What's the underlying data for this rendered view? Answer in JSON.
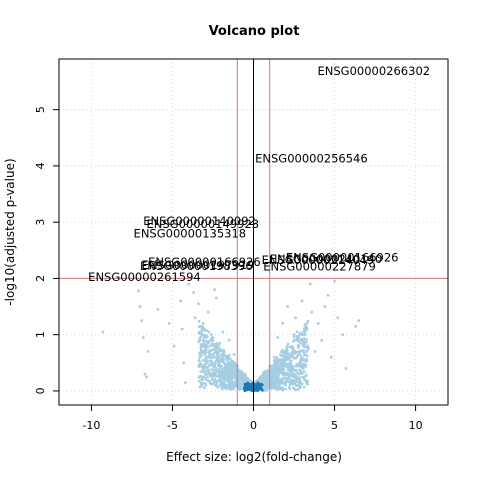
{
  "chart_data": {
    "type": "scatter",
    "title": "Volcano plot",
    "xlabel": "Effect size: log2(fold-change)",
    "ylabel": "-log10(adjusted p-value)",
    "xlim": [
      -12,
      12
    ],
    "ylim": [
      -0.25,
      5.9
    ],
    "xticks": [
      -10,
      -5,
      0,
      5,
      10
    ],
    "yticks": [
      0,
      1,
      2,
      3,
      4,
      5
    ],
    "grid": true,
    "thresholds": {
      "fc_lines": [
        -1,
        1
      ],
      "p_line": 2,
      "zero_line": 0
    },
    "colors": {
      "points": "#a6cee3",
      "points_dense": "#1f78b4",
      "threshold_lines": "#c97a7a",
      "zero_line": "#000000",
      "grid": "#d9d9d9"
    },
    "points": [
      {
        "x": -9.3,
        "y": 1.05
      },
      {
        "x": -7.1,
        "y": 1.78
      },
      {
        "x": -7.0,
        "y": 1.5
      },
      {
        "x": -6.9,
        "y": 1.25
      },
      {
        "x": -6.8,
        "y": 0.95
      },
      {
        "x": -6.7,
        "y": 0.3
      },
      {
        "x": -6.6,
        "y": 0.25
      },
      {
        "x": -6.5,
        "y": 0.7
      },
      {
        "x": -5.9,
        "y": 1.45
      },
      {
        "x": -5.2,
        "y": 1.2
      },
      {
        "x": -4.9,
        "y": 0.8
      },
      {
        "x": -4.5,
        "y": 1.6
      },
      {
        "x": -4.4,
        "y": 1.1
      },
      {
        "x": -4.3,
        "y": 0.5
      },
      {
        "x": -4.2,
        "y": 0.15
      },
      {
        "x": -4.0,
        "y": 1.9
      },
      {
        "x": -3.7,
        "y": 1.75
      },
      {
        "x": -3.6,
        "y": 1.3
      },
      {
        "x": -3.4,
        "y": 1.55
      },
      {
        "x": -3.3,
        "y": 0.9
      },
      {
        "x": -3.1,
        "y": 1.2
      },
      {
        "x": -2.9,
        "y": 0.6
      },
      {
        "x": -2.8,
        "y": 1.4
      },
      {
        "x": -2.6,
        "y": 1.0
      },
      {
        "x": -2.5,
        "y": 0.45
      },
      {
        "x": -2.4,
        "y": 1.8
      },
      {
        "x": -2.3,
        "y": 1.65
      },
      {
        "x": -2.1,
        "y": 0.75
      },
      {
        "x": -1.9,
        "y": 1.05
      },
      {
        "x": -1.8,
        "y": 0.35
      },
      {
        "x": -1.6,
        "y": 0.55
      },
      {
        "x": -1.5,
        "y": 0.9
      },
      {
        "x": -1.3,
        "y": 0.4
      },
      {
        "x": -1.2,
        "y": 0.65
      },
      {
        "x": -1.1,
        "y": 0.25
      },
      {
        "x": 1.1,
        "y": 0.3
      },
      {
        "x": 1.3,
        "y": 0.6
      },
      {
        "x": 1.5,
        "y": 0.95
      },
      {
        "x": 1.6,
        "y": 0.4
      },
      {
        "x": 1.8,
        "y": 1.2
      },
      {
        "x": 2.0,
        "y": 0.7
      },
      {
        "x": 2.1,
        "y": 1.5
      },
      {
        "x": 2.3,
        "y": 0.5
      },
      {
        "x": 2.5,
        "y": 1.0
      },
      {
        "x": 2.6,
        "y": 1.3
      },
      {
        "x": 2.8,
        "y": 0.8
      },
      {
        "x": 3.0,
        "y": 1.6
      },
      {
        "x": 3.1,
        "y": 0.55
      },
      {
        "x": 3.3,
        "y": 1.1
      },
      {
        "x": 3.5,
        "y": 1.9
      },
      {
        "x": 3.6,
        "y": 1.4
      },
      {
        "x": 3.8,
        "y": 0.7
      },
      {
        "x": 4.0,
        "y": 1.2
      },
      {
        "x": 4.2,
        "y": 0.9
      },
      {
        "x": 4.4,
        "y": 1.5
      },
      {
        "x": 4.6,
        "y": 1.7
      },
      {
        "x": 4.8,
        "y": 0.6
      },
      {
        "x": 5.0,
        "y": 1.95
      },
      {
        "x": 5.2,
        "y": 1.3
      },
      {
        "x": 5.5,
        "y": 1.0
      },
      {
        "x": 5.7,
        "y": 0.4
      },
      {
        "x": 6.3,
        "y": 1.15
      },
      {
        "x": 6.5,
        "y": 1.25
      }
    ],
    "labeled_points": [
      {
        "label": "ENSG00000266302",
        "x": 3.95,
        "y": 5.62
      },
      {
        "label": "ENSG00000256546",
        "x": 0.1,
        "y": 4.06
      },
      {
        "label": "ENSG00000140092",
        "x": -6.8,
        "y": 2.95
      },
      {
        "label": "ENSG00000149923",
        "x": -6.6,
        "y": 2.9
      },
      {
        "label": "ENSG00000135318",
        "x": -7.4,
        "y": 2.73
      },
      {
        "label": "ENSG00000166926",
        "x": 2.0,
        "y": 2.3
      },
      {
        "label": "ENSG00000214049",
        "x": 0.5,
        "y": 2.26
      },
      {
        "label": "ENSG00000240140",
        "x": 1.0,
        "y": 2.27
      },
      {
        "label": "ENSG00000166926",
        "x": -6.5,
        "y": 2.22
      },
      {
        "label": "ENSG00000227879",
        "x": 0.6,
        "y": 2.14
      },
      {
        "label": "ENSG00000198396",
        "x": -7.0,
        "y": 2.15
      },
      {
        "label": "ENSG00000197919",
        "x": -6.9,
        "y": 2.17
      },
      {
        "label": "ENSG00000261594",
        "x": -10.2,
        "y": 1.95
      }
    ]
  }
}
